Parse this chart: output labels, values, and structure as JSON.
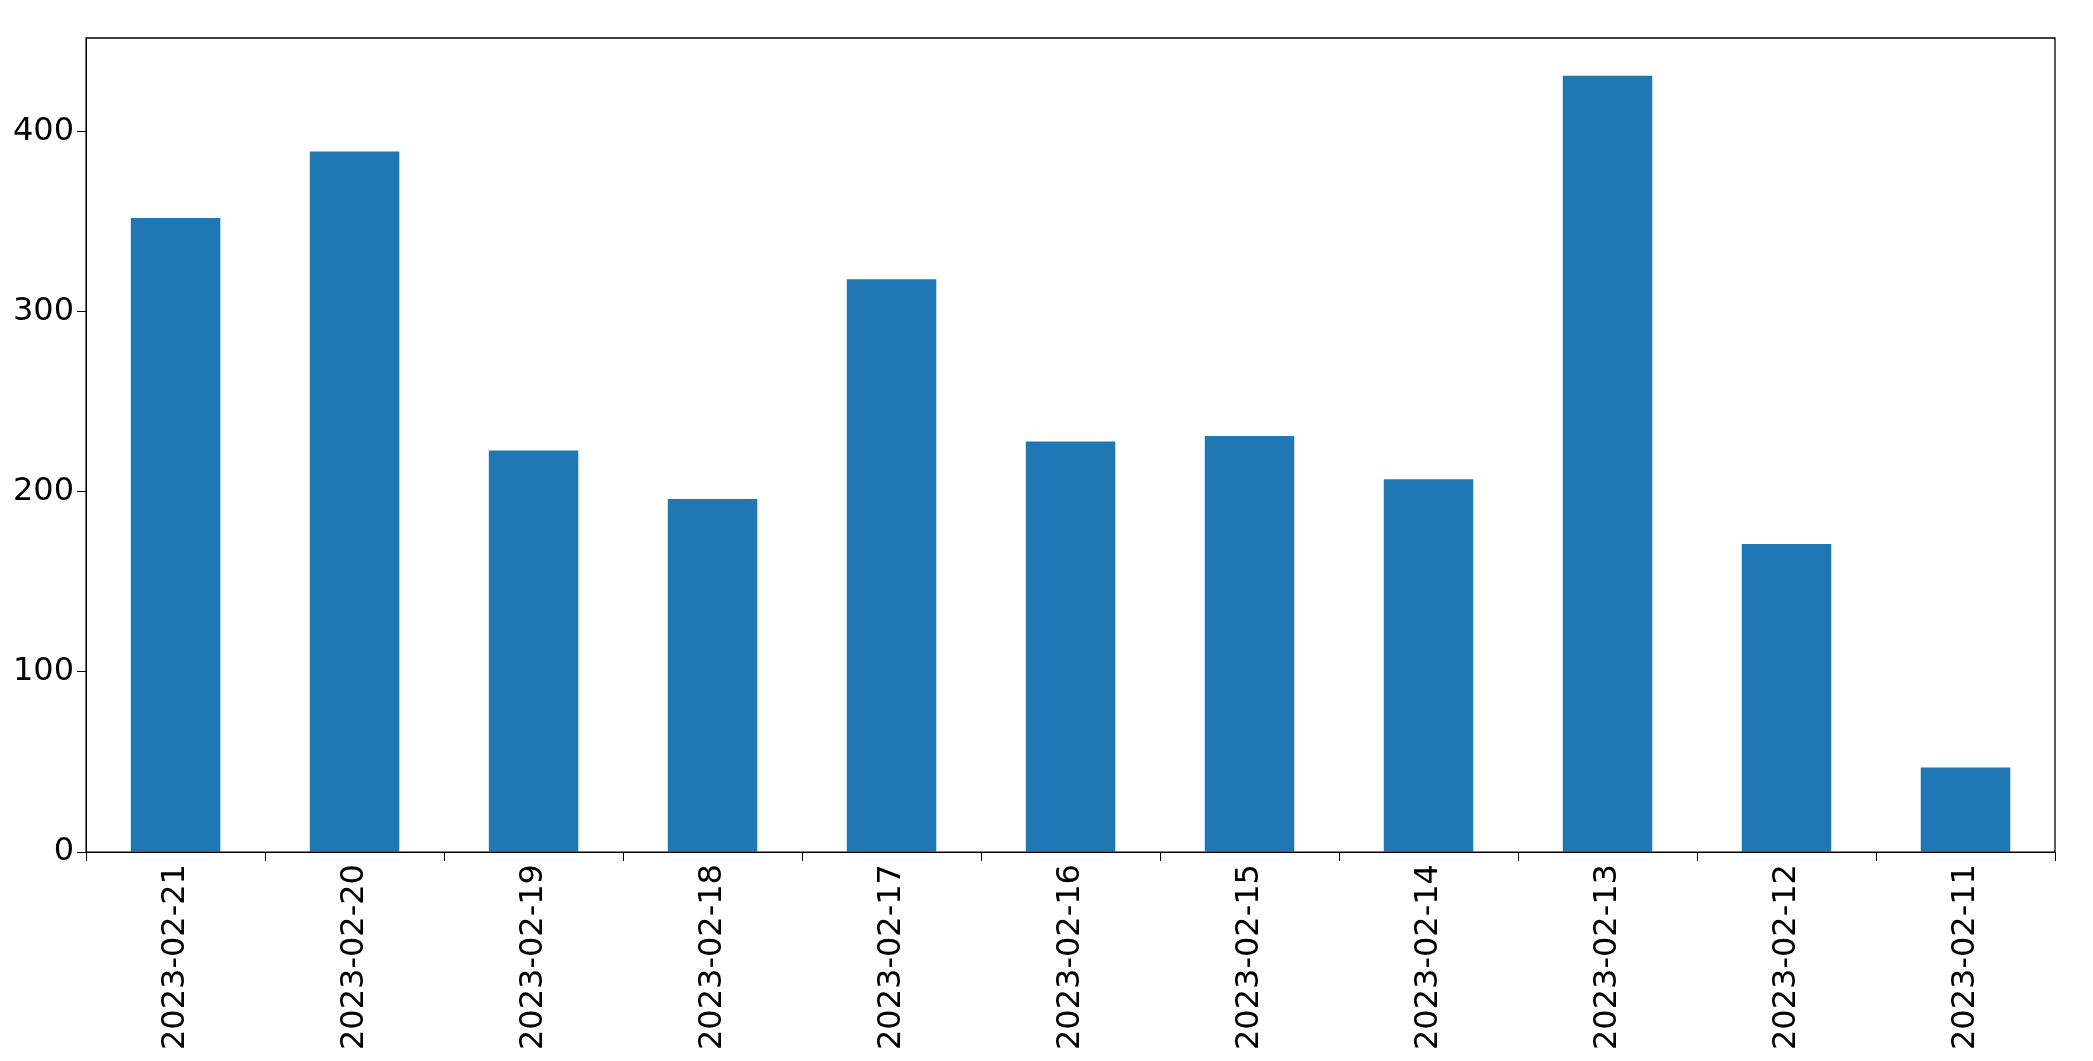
{
  "chart_data": {
    "type": "bar",
    "categories": [
      "2023-02-21",
      "2023-02-20",
      "2023-02-19",
      "2023-02-18",
      "2023-02-17",
      "2023-02-16",
      "2023-02-15",
      "2023-02-14",
      "2023-02-13",
      "2023-02-12",
      "2023-02-11"
    ],
    "values": [
      352,
      389,
      223,
      196,
      318,
      228,
      231,
      207,
      431,
      171,
      47
    ],
    "color": "#1f77b4",
    "ylim": [
      0,
      452
    ],
    "yticks": [
      0,
      100,
      200,
      300,
      400
    ],
    "grid": false,
    "legend": false
  }
}
